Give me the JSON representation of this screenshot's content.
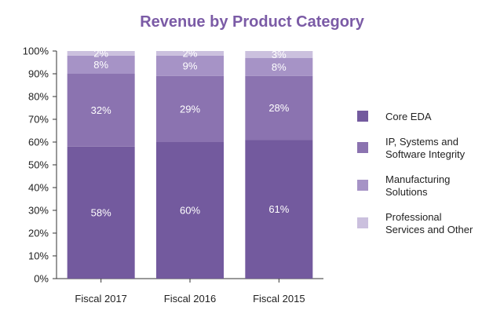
{
  "chart_data": {
    "type": "bar",
    "stacked": true,
    "percent": true,
    "title": "Revenue by Product Category",
    "categories": [
      "Fiscal 2017",
      "Fiscal 2016",
      "Fiscal 2015"
    ],
    "ylim": [
      0,
      100
    ],
    "yticks": [
      "0%",
      "10%",
      "20%",
      "30%",
      "40%",
      "50%",
      "60%",
      "70%",
      "80%",
      "90%",
      "100%"
    ],
    "grid": false,
    "legend_position": "right",
    "series": [
      {
        "name": "Core EDA",
        "legend_lines": [
          "Core EDA"
        ],
        "values": [
          58,
          60,
          61
        ],
        "labels": [
          "58%",
          "60%",
          "61%"
        ],
        "color": "#735a9e"
      },
      {
        "name": "IP, Systems and Software Integrity",
        "legend_lines": [
          "IP, Systems and",
          "Software Integrity"
        ],
        "values": [
          32,
          29,
          28
        ],
        "labels": [
          "32%",
          "29%",
          "28%"
        ],
        "color": "#8b73b0"
      },
      {
        "name": "Manufacturing Solutions",
        "legend_lines": [
          "Manufacturing",
          "Solutions"
        ],
        "values": [
          8,
          9,
          8
        ],
        "labels": [
          "8%",
          "9%",
          "8%"
        ],
        "color": "#a693c6"
      },
      {
        "name": "Professional Services and Other",
        "legend_lines": [
          "Professional",
          "Services and Other"
        ],
        "values": [
          2,
          2,
          3
        ],
        "labels": [
          "2%",
          "2%",
          "3%"
        ],
        "color": "#cbc0de"
      }
    ],
    "colors": {
      "title": "#7b5ba6",
      "axis": "#333333"
    }
  }
}
